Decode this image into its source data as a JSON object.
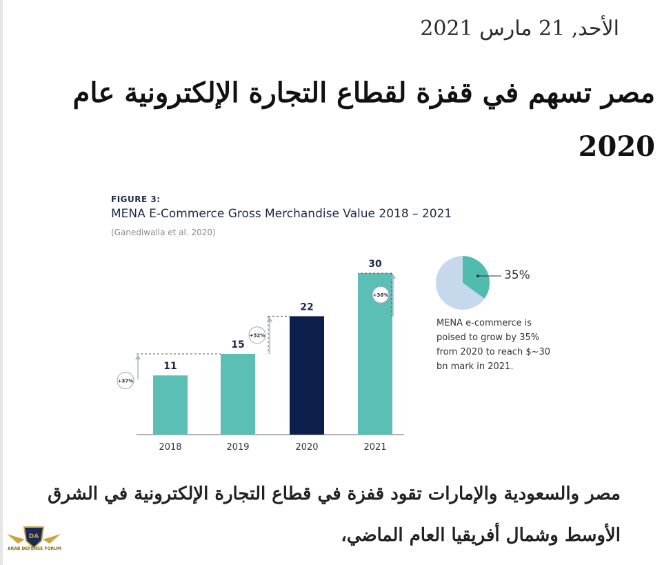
{
  "date": "الأحد, 21 مارس 2021",
  "headline": "مصر تسهم في قفزة لقطاع التجارة الإلكترونية عام 2020",
  "figure": {
    "label": "FIGURE 3:",
    "title": "MENA E-Commerce Gross Merchandise Value 2018 – 2021",
    "source": "(Ganediwalla et al. 2020)"
  },
  "chart_data": [
    {
      "type": "bar",
      "categories": [
        "2018",
        "2019",
        "2020",
        "2021"
      ],
      "values": [
        11,
        15,
        22,
        30
      ],
      "value_labels": [
        "11",
        "15",
        "22",
        "30"
      ],
      "growth_labels": [
        "+37%",
        "+52%",
        "+36%"
      ],
      "highlight_index": 2,
      "ylim": [
        0,
        30
      ],
      "grid": false,
      "colors": {
        "bar": "#5bbfb5",
        "highlight": "#0c1f4a",
        "guide": "#555555",
        "arrow": "#9fb7cf"
      }
    },
    {
      "type": "pie",
      "values": [
        35,
        65
      ],
      "label": "35%",
      "colors": [
        "#4fbcae",
        "#c6d8ec"
      ],
      "annotation": "MENA e-commerce is poised to grow by 35% from 2020 to reach $~30 bn mark in 2021."
    }
  ],
  "body_text": "مصر والسعودية والإمارات تقود قفزة في قطاع التجارة الإلكترونية في الشرق الأوسط وشمال أفريقيا العام الماضي،",
  "logo": {
    "name": "shield-logo-icon",
    "text": "ARAB DEFENSE FORUM"
  }
}
